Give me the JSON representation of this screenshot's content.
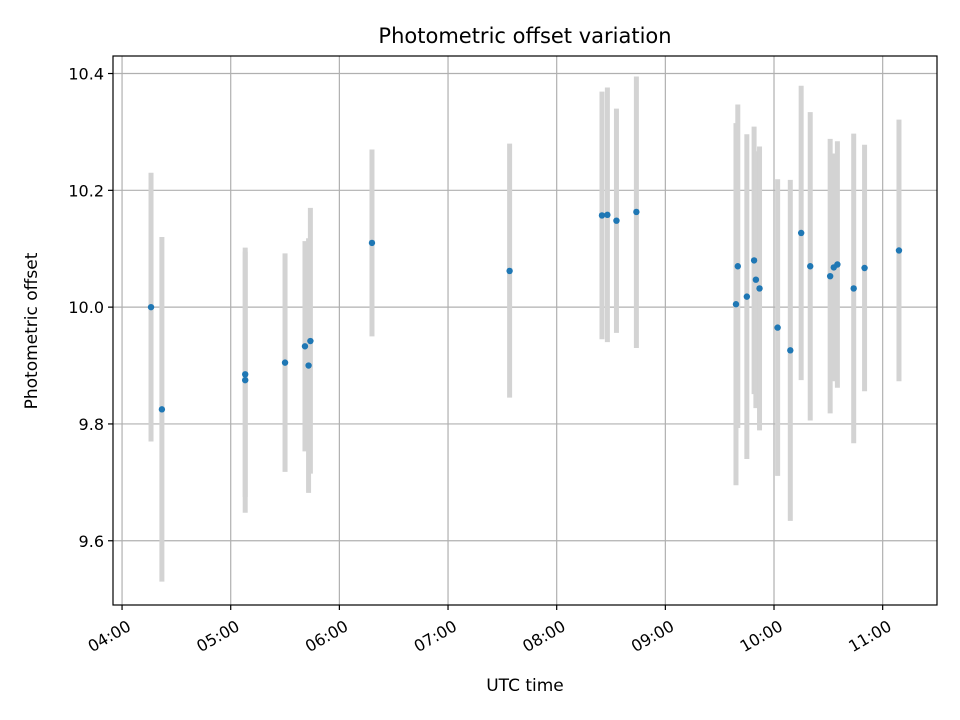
{
  "chart_data": {
    "type": "scatter",
    "title": "Photometric offset variation",
    "xlabel": "UTC time",
    "ylabel": "Photometric offset",
    "x_unit": "UTC time of day",
    "xlim": [
      "03:55",
      "11:30"
    ],
    "ylim": [
      9.49,
      10.43
    ],
    "x_ticks": [
      "04:00",
      "05:00",
      "06:00",
      "07:00",
      "08:00",
      "09:00",
      "10:00",
      "11:00"
    ],
    "y_ticks": [
      "9.6",
      "9.8",
      "10.0",
      "10.2",
      "10.4"
    ],
    "grid": true,
    "colors": {
      "point": "#1f77b4",
      "errorbar": "#d3d3d3"
    },
    "series": [
      {
        "points": [
          {
            "time": "04:16",
            "y": 10.0,
            "low": 9.77,
            "high": 10.23
          },
          {
            "time": "04:22",
            "y": 9.825,
            "low": 9.53,
            "high": 10.12
          },
          {
            "time": "05:08",
            "y": 9.885,
            "low": 9.675,
            "high": 10.095
          },
          {
            "time": "05:08",
            "y": 9.875,
            "low": 9.648,
            "high": 10.102
          },
          {
            "time": "05:30",
            "y": 9.905,
            "low": 9.718,
            "high": 10.092
          },
          {
            "time": "05:41",
            "y": 9.933,
            "low": 9.753,
            "high": 10.113
          },
          {
            "time": "05:43",
            "y": 9.9,
            "low": 9.682,
            "high": 10.118
          },
          {
            "time": "05:44",
            "y": 9.942,
            "low": 9.715,
            "high": 10.17
          },
          {
            "time": "06:18",
            "y": 10.11,
            "low": 9.95,
            "high": 10.27
          },
          {
            "time": "07:34",
            "y": 10.062,
            "low": 9.845,
            "high": 10.28
          },
          {
            "time": "08:25",
            "y": 10.157,
            "low": 9.945,
            "high": 10.369
          },
          {
            "time": "08:28",
            "y": 10.158,
            "low": 9.94,
            "high": 10.376
          },
          {
            "time": "08:33",
            "y": 10.148,
            "low": 9.956,
            "high": 10.34
          },
          {
            "time": "08:44",
            "y": 10.163,
            "low": 9.93,
            "high": 10.395
          },
          {
            "time": "09:39",
            "y": 10.005,
            "low": 9.695,
            "high": 10.315
          },
          {
            "time": "09:40",
            "y": 10.07,
            "low": 9.793,
            "high": 10.347
          },
          {
            "time": "09:45",
            "y": 10.018,
            "low": 9.74,
            "high": 10.296
          },
          {
            "time": "09:49",
            "y": 10.08,
            "low": 9.851,
            "high": 10.309
          },
          {
            "time": "09:50",
            "y": 10.047,
            "low": 9.827,
            "high": 10.267
          },
          {
            "time": "09:52",
            "y": 10.032,
            "low": 9.789,
            "high": 10.275
          },
          {
            "time": "10:02",
            "y": 9.965,
            "low": 9.711,
            "high": 10.219
          },
          {
            "time": "10:09",
            "y": 9.926,
            "low": 9.634,
            "high": 10.218
          },
          {
            "time": "10:15",
            "y": 10.127,
            "low": 9.875,
            "high": 10.379
          },
          {
            "time": "10:20",
            "y": 10.07,
            "low": 9.806,
            "high": 10.334
          },
          {
            "time": "10:31",
            "y": 10.053,
            "low": 9.818,
            "high": 10.288
          },
          {
            "time": "10:33",
            "y": 10.068,
            "low": 9.873,
            "high": 10.263
          },
          {
            "time": "10:35",
            "y": 10.073,
            "low": 9.862,
            "high": 10.284
          },
          {
            "time": "10:44",
            "y": 10.032,
            "low": 9.767,
            "high": 10.297
          },
          {
            "time": "10:50",
            "y": 10.067,
            "low": 9.856,
            "high": 10.278
          },
          {
            "time": "11:09",
            "y": 10.097,
            "low": 9.873,
            "high": 10.321
          }
        ]
      }
    ]
  }
}
